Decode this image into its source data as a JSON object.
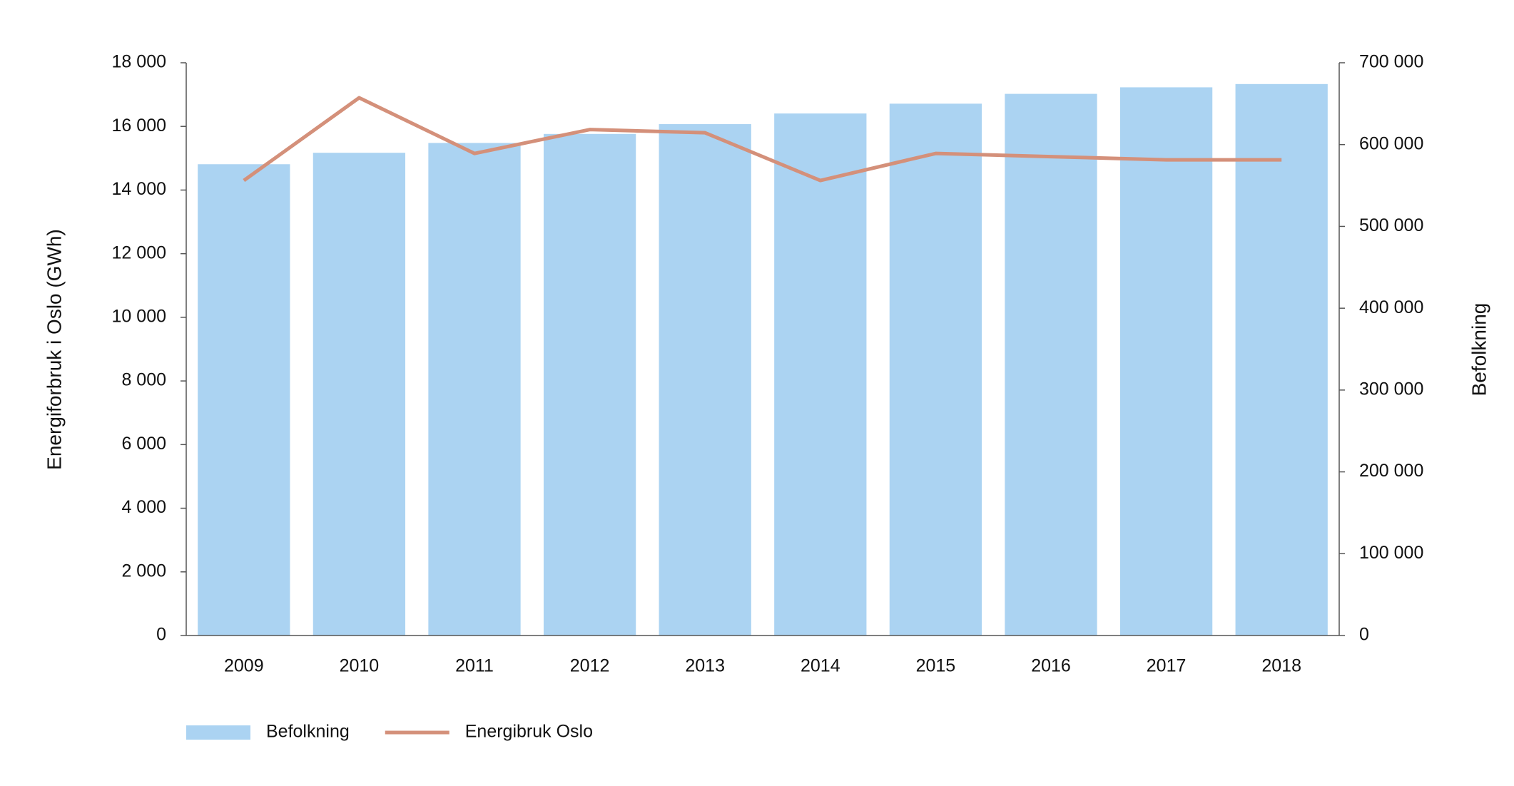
{
  "chart_data": {
    "type": "bar_line",
    "categories": [
      "2009",
      "2010",
      "2011",
      "2012",
      "2013",
      "2014",
      "2015",
      "2016",
      "2017",
      "2018"
    ],
    "y_label": "Energiforbruk i Oslo (GWh)",
    "y2_label": "Befolkning",
    "series": [
      {
        "name": "Befolkning",
        "type": "bar",
        "axis": "y2",
        "color": "#abd3f2",
        "values": [
          576000,
          590000,
          602000,
          613000,
          625000,
          638000,
          650000,
          662000,
          670000,
          674000
        ]
      },
      {
        "name": "Energibruk Oslo",
        "type": "line",
        "axis": "y",
        "color": "#d4907a",
        "values": [
          14300,
          16900,
          15150,
          15900,
          15800,
          14300,
          15150,
          15050,
          14950,
          14950
        ]
      }
    ],
    "ylim": [
      0,
      18000
    ],
    "yticks": [
      0,
      {
        "value": 2000,
        "label": "2 000"
      },
      {
        "value": 4000,
        "label": "4 000"
      },
      {
        "value": 6000,
        "label": "6 000"
      },
      {
        "value": 8000,
        "label": "8 000"
      },
      {
        "value": 10000,
        "label": "10 000"
      },
      {
        "value": 12000,
        "label": "12 000"
      },
      {
        "value": 14000,
        "label": "14 000"
      },
      {
        "value": 16000,
        "label": "16 000"
      },
      {
        "value": 18000,
        "label": "18 000"
      }
    ],
    "y2lim": [
      0,
      700000
    ],
    "y2ticks": [
      0,
      {
        "value": 100000,
        "label": "100 000"
      },
      {
        "value": 200000,
        "label": "200 000"
      },
      {
        "value": 300000,
        "label": "300 000"
      },
      {
        "value": 400000,
        "label": "400 000"
      },
      {
        "value": 500000,
        "label": "500 000"
      },
      {
        "value": 600000,
        "label": "600 000"
      },
      {
        "value": 700000,
        "label": "700 000"
      }
    ],
    "legend": "bottom-left"
  }
}
